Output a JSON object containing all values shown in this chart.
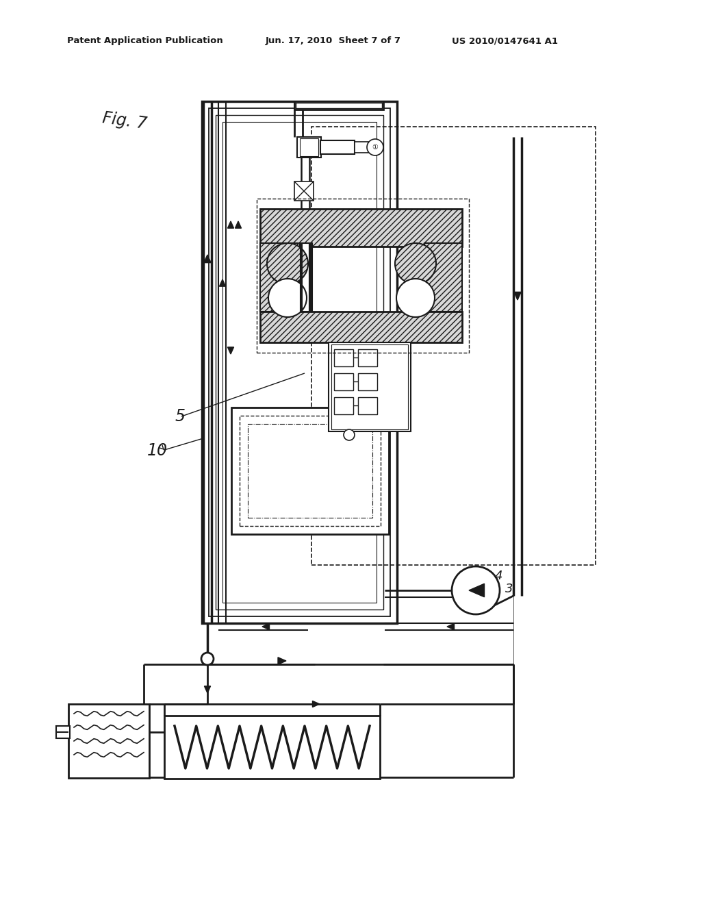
{
  "bg_color": "#ffffff",
  "line_color": "#1a1a1a",
  "header_left": "Patent Application Publication",
  "header_center": "Jun. 17, 2010  Sheet 7 of 7",
  "header_right": "US 2010/0147641 A1",
  "fig_label": "Fig. 7",
  "label_5": "5",
  "label_10": "10",
  "label_3": "3",
  "label_4": "4"
}
